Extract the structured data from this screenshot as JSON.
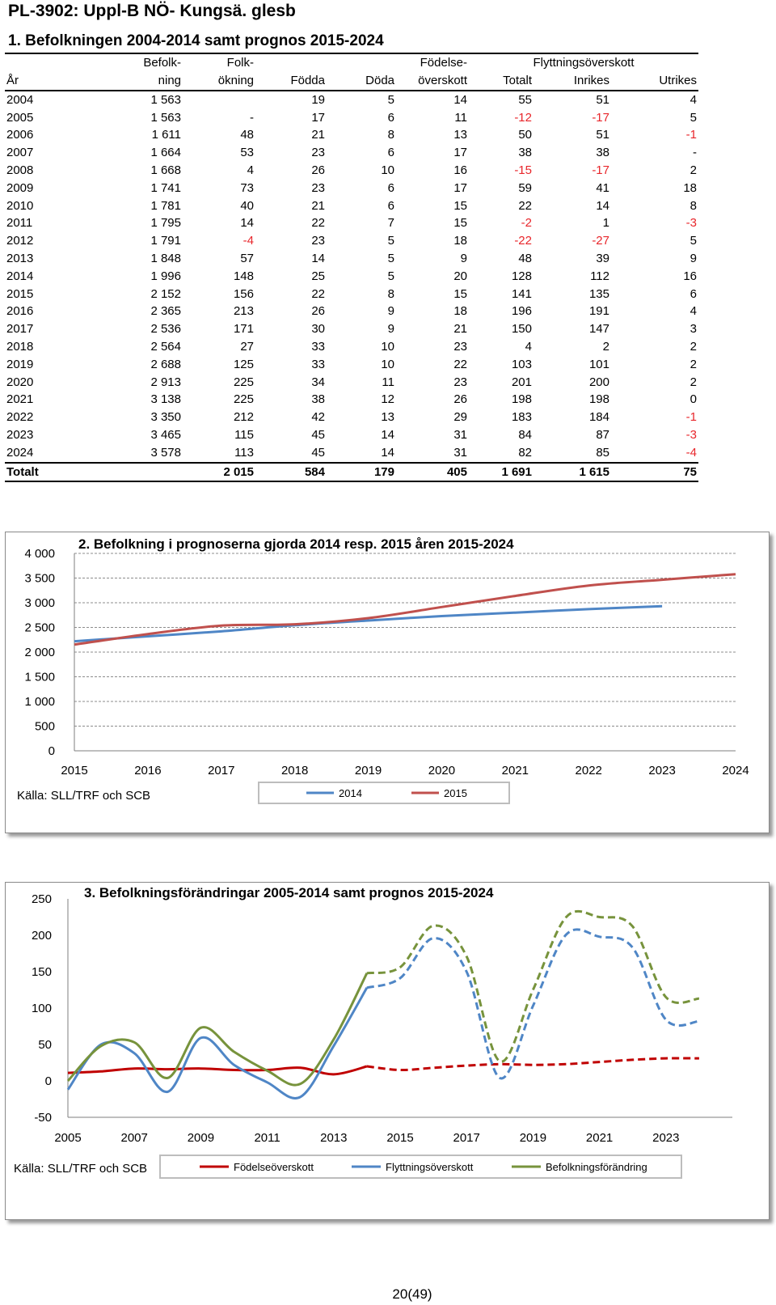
{
  "header": {
    "page_title": "PL-3902: Uppl-B NÖ- Kungsä. glesb",
    "section_title": "1. Befolkningen 2004-2014 samt prognos 2015-2024"
  },
  "table": {
    "headers_row1": [
      "",
      "Befolk-",
      "Folk-",
      "",
      "",
      "Födelse-",
      "Flyttningsöverskott"
    ],
    "headers_row2": [
      "År",
      "ning",
      "ökning",
      "Födda",
      "Döda",
      "överskott",
      "Totalt",
      "Inrikes",
      "Utrikes"
    ],
    "rows": [
      [
        "2004",
        "1 563",
        "",
        "19",
        "5",
        "14",
        "55",
        "51",
        "4"
      ],
      [
        "2005",
        "1 563",
        "-",
        "17",
        "6",
        "11",
        "-12",
        "-17",
        "5"
      ],
      [
        "2006",
        "1 611",
        "48",
        "21",
        "8",
        "13",
        "50",
        "51",
        "-1"
      ],
      [
        "2007",
        "1 664",
        "53",
        "23",
        "6",
        "17",
        "38",
        "38",
        "-"
      ],
      [
        "2008",
        "1 668",
        "4",
        "26",
        "10",
        "16",
        "-15",
        "-17",
        "2"
      ],
      [
        "2009",
        "1 741",
        "73",
        "23",
        "6",
        "17",
        "59",
        "41",
        "18"
      ],
      [
        "2010",
        "1 781",
        "40",
        "21",
        "6",
        "15",
        "22",
        "14",
        "8"
      ],
      [
        "2011",
        "1 795",
        "14",
        "22",
        "7",
        "15",
        "-2",
        "1",
        "-3"
      ],
      [
        "2012",
        "1 791",
        "-4",
        "23",
        "5",
        "18",
        "-22",
        "-27",
        "5"
      ],
      [
        "2013",
        "1 848",
        "57",
        "14",
        "5",
        "9",
        "48",
        "39",
        "9"
      ],
      [
        "2014",
        "1 996",
        "148",
        "25",
        "5",
        "20",
        "128",
        "112",
        "16"
      ],
      [
        "2015",
        "2 152",
        "156",
        "22",
        "8",
        "15",
        "141",
        "135",
        "6"
      ],
      [
        "2016",
        "2 365",
        "213",
        "26",
        "9",
        "18",
        "196",
        "191",
        "4"
      ],
      [
        "2017",
        "2 536",
        "171",
        "30",
        "9",
        "21",
        "150",
        "147",
        "3"
      ],
      [
        "2018",
        "2 564",
        "27",
        "33",
        "10",
        "23",
        "4",
        "2",
        "2"
      ],
      [
        "2019",
        "2 688",
        "125",
        "33",
        "10",
        "22",
        "103",
        "101",
        "2"
      ],
      [
        "2020",
        "2 913",
        "225",
        "34",
        "11",
        "23",
        "201",
        "200",
        "2"
      ],
      [
        "2021",
        "3 138",
        "225",
        "38",
        "12",
        "26",
        "198",
        "198",
        "0"
      ],
      [
        "2022",
        "3 350",
        "212",
        "42",
        "13",
        "29",
        "183",
        "184",
        "-1"
      ],
      [
        "2023",
        "3 465",
        "115",
        "45",
        "14",
        "31",
        "84",
        "87",
        "-3"
      ],
      [
        "2024",
        "3 578",
        "113",
        "45",
        "14",
        "31",
        "82",
        "85",
        "-4"
      ]
    ],
    "total": [
      "Totalt",
      "",
      "2 015",
      "584",
      "179",
      "405",
      "1 691",
      "1 615",
      "75"
    ],
    "negative_color": "#e8262b"
  },
  "chart_data": [
    {
      "type": "line",
      "title": "2. Befolkning i prognoserna gjorda 2014 resp. 2015 åren 2015-2024",
      "source": "Källa: SLL/TRF och SCB",
      "x": [
        "2015",
        "2016",
        "2017",
        "2018",
        "2019",
        "2020",
        "2021",
        "2022",
        "2023",
        "2024"
      ],
      "yticks": [
        "0",
        "500",
        "1 000",
        "1 500",
        "2 000",
        "2 500",
        "3 000",
        "3 500",
        "4 000"
      ],
      "ylim": [
        0,
        4000
      ],
      "grid": true,
      "legend_position": "bottom",
      "series": [
        {
          "name": "2014",
          "color": "#4f86c6",
          "values": [
            2220,
            2320,
            2420,
            2545,
            2640,
            2730,
            2800,
            2870,
            2930,
            null
          ]
        },
        {
          "name": "2015",
          "color": "#c0504d",
          "values": [
            2152,
            2365,
            2536,
            2564,
            2688,
            2913,
            3138,
            3350,
            3465,
            3578
          ]
        }
      ]
    },
    {
      "type": "line",
      "title": "3. Befolkningsförändringar 2005-2014 samt prognos 2015-2024",
      "source": "Källa: SLL/TRF och SCB",
      "x": [
        2005,
        2006,
        2007,
        2008,
        2009,
        2010,
        2011,
        2012,
        2013,
        2014,
        2015,
        2016,
        2017,
        2018,
        2019,
        2020,
        2021,
        2022,
        2023,
        2024
      ],
      "xticks": [
        "2005",
        "2007",
        "2009",
        "2011",
        "2013",
        "2015",
        "2017",
        "2019",
        "2021",
        "2023"
      ],
      "yticks": [
        "-50",
        "0",
        "50",
        "100",
        "150",
        "200",
        "250"
      ],
      "ylim": [
        -50,
        250
      ],
      "forecast_from": 2014,
      "legend_position": "bottom",
      "series": [
        {
          "name": "Födelseöverskott",
          "color": "#c00000",
          "values": [
            11,
            13,
            17,
            16,
            17,
            15,
            15,
            18,
            9,
            20,
            15,
            18,
            21,
            23,
            22,
            23,
            26,
            29,
            31,
            31
          ]
        },
        {
          "name": "Flyttningsöverskott",
          "color": "#4f86c6",
          "values": [
            -12,
            50,
            38,
            -15,
            59,
            22,
            -2,
            -22,
            48,
            128,
            141,
            196,
            150,
            4,
            103,
            201,
            198,
            183,
            84,
            82
          ]
        },
        {
          "name": "Befolkningsförändring",
          "color": "#77933c",
          "values": [
            0,
            48,
            53,
            4,
            73,
            40,
            14,
            -4,
            57,
            148,
            156,
            213,
            171,
            27,
            125,
            225,
            225,
            212,
            115,
            113
          ]
        }
      ]
    }
  ],
  "footer": {
    "page_number": "20(49)"
  }
}
